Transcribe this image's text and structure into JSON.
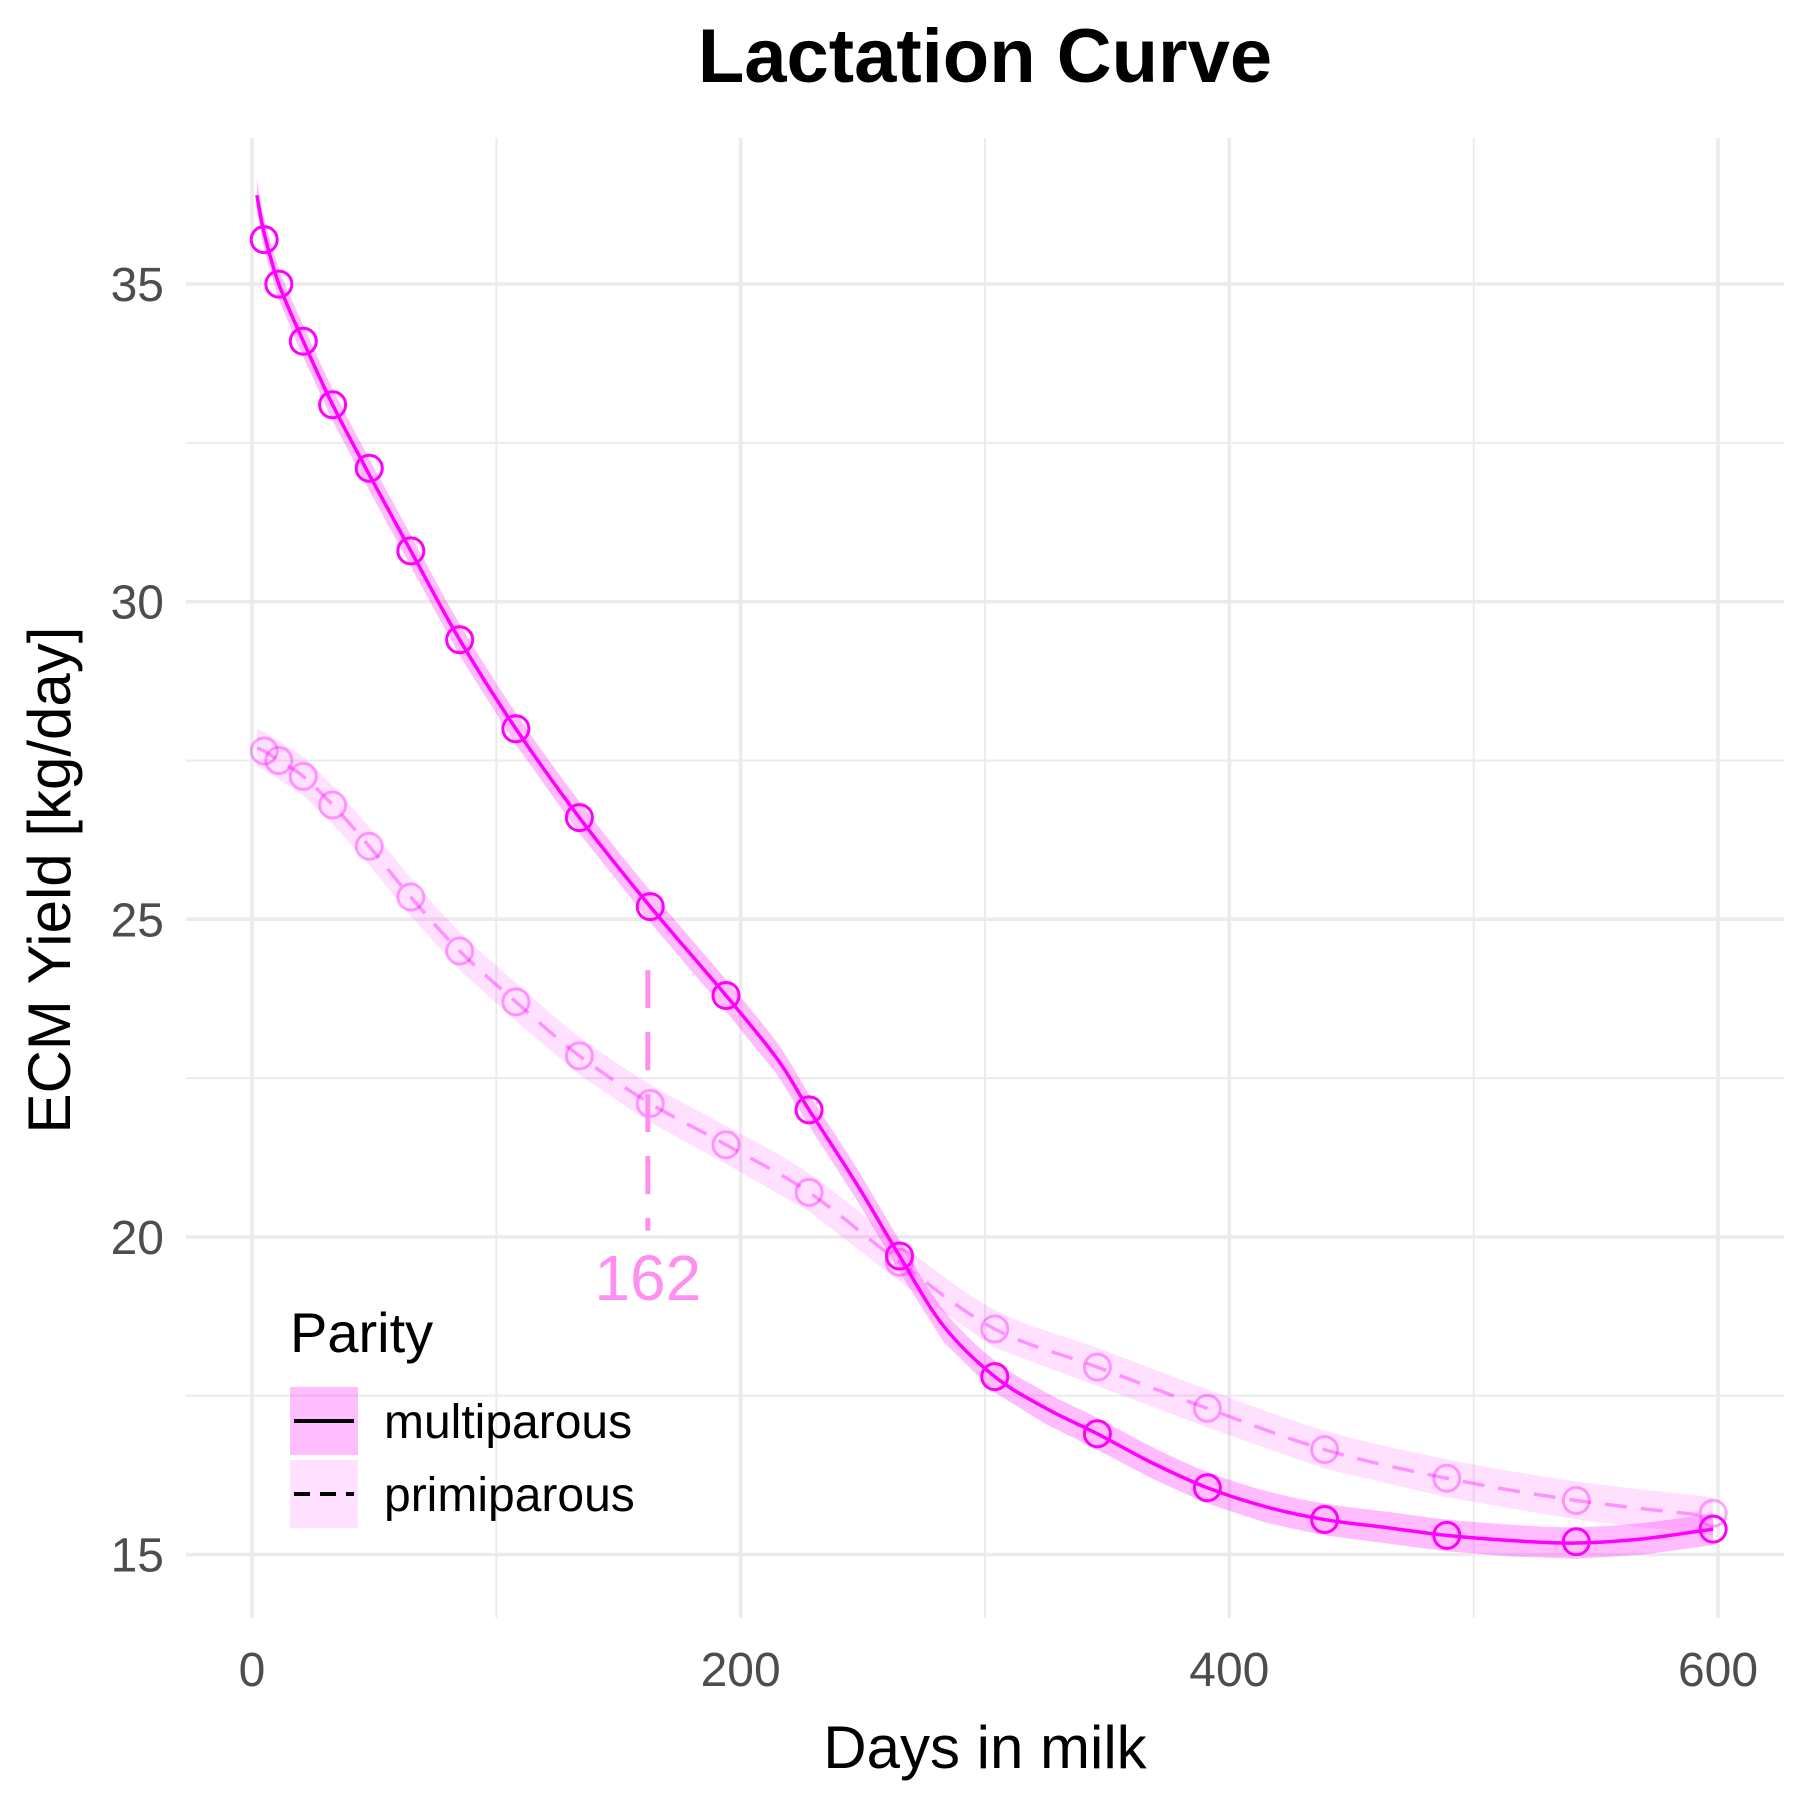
{
  "chart_data": {
    "type": "line",
    "title": "Lactation Curve",
    "xlabel": "Days in milk",
    "ylabel": "ECM Yield [kg/day]",
    "xlim": [
      -27,
      627
    ],
    "ylim": [
      14.0,
      37.3
    ],
    "xticks": [
      0,
      200,
      400,
      600
    ],
    "xtick_labels": [
      "0",
      "200",
      "400",
      "600"
    ],
    "yticks": [
      15,
      20,
      25,
      30,
      35
    ],
    "ytick_labels": [
      "15",
      "20",
      "25",
      "30",
      "35"
    ],
    "grid": true,
    "legend": {
      "title": "Parity",
      "position": "bottom-left",
      "entries": [
        {
          "label": "multiparous",
          "linetype": "solid"
        },
        {
          "label": "primiparous",
          "linetype": "dashed"
        }
      ]
    },
    "series": [
      {
        "name": "multiparous",
        "color": "#ff00ff",
        "linetype": "solid",
        "opacity": 1.0,
        "points": [
          {
            "x": 5,
            "y": 35.7
          },
          {
            "x": 11,
            "y": 35.0
          },
          {
            "x": 21,
            "y": 34.1
          },
          {
            "x": 33,
            "y": 33.1
          },
          {
            "x": 48,
            "y": 32.1
          },
          {
            "x": 65,
            "y": 30.8
          },
          {
            "x": 85,
            "y": 29.4
          },
          {
            "x": 108,
            "y": 28.0
          },
          {
            "x": 134,
            "y": 26.6
          },
          {
            "x": 163,
            "y": 25.2
          },
          {
            "x": 194,
            "y": 23.8
          },
          {
            "x": 228,
            "y": 22.0
          },
          {
            "x": 265,
            "y": 19.7
          },
          {
            "x": 304,
            "y": 17.8
          },
          {
            "x": 346,
            "y": 16.9
          },
          {
            "x": 391,
            "y": 16.05
          },
          {
            "x": 439,
            "y": 15.55
          },
          {
            "x": 489,
            "y": 15.3
          },
          {
            "x": 542,
            "y": 15.2
          },
          {
            "x": 598,
            "y": 15.4
          }
        ],
        "curve": [
          {
            "x": 2,
            "y": 36.4
          },
          {
            "x": 5,
            "y": 35.8
          },
          {
            "x": 11,
            "y": 35.0
          },
          {
            "x": 21,
            "y": 34.1
          },
          {
            "x": 33,
            "y": 33.1
          },
          {
            "x": 48,
            "y": 32.0
          },
          {
            "x": 65,
            "y": 30.8
          },
          {
            "x": 85,
            "y": 29.4
          },
          {
            "x": 108,
            "y": 28.0
          },
          {
            "x": 134,
            "y": 26.6
          },
          {
            "x": 163,
            "y": 25.2
          },
          {
            "x": 194,
            "y": 23.8
          },
          {
            "x": 215,
            "y": 22.8
          },
          {
            "x": 228,
            "y": 22.0
          },
          {
            "x": 248,
            "y": 20.8
          },
          {
            "x": 265,
            "y": 19.7
          },
          {
            "x": 283,
            "y": 18.6
          },
          {
            "x": 304,
            "y": 17.8
          },
          {
            "x": 325,
            "y": 17.3
          },
          {
            "x": 346,
            "y": 16.9
          },
          {
            "x": 368,
            "y": 16.45
          },
          {
            "x": 391,
            "y": 16.05
          },
          {
            "x": 415,
            "y": 15.75
          },
          {
            "x": 439,
            "y": 15.55
          },
          {
            "x": 465,
            "y": 15.42
          },
          {
            "x": 489,
            "y": 15.3
          },
          {
            "x": 515,
            "y": 15.22
          },
          {
            "x": 542,
            "y": 15.18
          },
          {
            "x": 570,
            "y": 15.25
          },
          {
            "x": 598,
            "y": 15.4
          }
        ],
        "band_halfwidth": 0.25
      },
      {
        "name": "primiparous",
        "color": "#ff00ff",
        "linetype": "dashed",
        "opacity": 0.35,
        "points": [
          {
            "x": 5,
            "y": 27.65
          },
          {
            "x": 11,
            "y": 27.5
          },
          {
            "x": 21,
            "y": 27.25
          },
          {
            "x": 33,
            "y": 26.8
          },
          {
            "x": 48,
            "y": 26.15
          },
          {
            "x": 65,
            "y": 25.35
          },
          {
            "x": 85,
            "y": 24.5
          },
          {
            "x": 108,
            "y": 23.7
          },
          {
            "x": 134,
            "y": 22.85
          },
          {
            "x": 163,
            "y": 22.1
          },
          {
            "x": 194,
            "y": 21.45
          },
          {
            "x": 228,
            "y": 20.7
          },
          {
            "x": 265,
            "y": 19.6
          },
          {
            "x": 304,
            "y": 18.55
          },
          {
            "x": 346,
            "y": 17.95
          },
          {
            "x": 391,
            "y": 17.3
          },
          {
            "x": 439,
            "y": 16.65
          },
          {
            "x": 489,
            "y": 16.2
          },
          {
            "x": 542,
            "y": 15.85
          },
          {
            "x": 598,
            "y": 15.65
          }
        ],
        "curve": [
          {
            "x": 2,
            "y": 27.7
          },
          {
            "x": 5,
            "y": 27.65
          },
          {
            "x": 11,
            "y": 27.5
          },
          {
            "x": 21,
            "y": 27.25
          },
          {
            "x": 33,
            "y": 26.8
          },
          {
            "x": 48,
            "y": 26.15
          },
          {
            "x": 65,
            "y": 25.35
          },
          {
            "x": 85,
            "y": 24.5
          },
          {
            "x": 108,
            "y": 23.7
          },
          {
            "x": 134,
            "y": 22.85
          },
          {
            "x": 163,
            "y": 22.1
          },
          {
            "x": 194,
            "y": 21.45
          },
          {
            "x": 228,
            "y": 20.7
          },
          {
            "x": 265,
            "y": 19.6
          },
          {
            "x": 304,
            "y": 18.55
          },
          {
            "x": 346,
            "y": 17.95
          },
          {
            "x": 391,
            "y": 17.3
          },
          {
            "x": 439,
            "y": 16.65
          },
          {
            "x": 489,
            "y": 16.2
          },
          {
            "x": 542,
            "y": 15.85
          },
          {
            "x": 598,
            "y": 15.6
          }
        ],
        "band_halfwidth": 0.3
      }
    ],
    "annotations": [
      {
        "label": "162",
        "x": 162,
        "y_from": 20.1,
        "y_to": 24.2,
        "label_y": 19.35,
        "color": "#ff8ff0",
        "linetype": "dashed"
      }
    ]
  }
}
